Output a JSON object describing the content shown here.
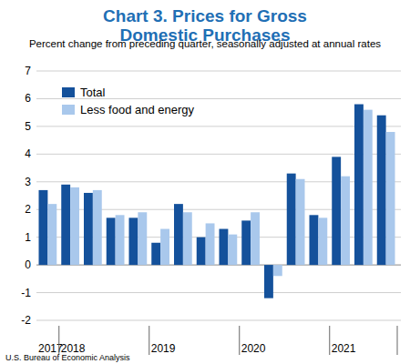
{
  "chart_data": {
    "type": "bar",
    "title": "Chart 3. Prices for Gross Domestic Purchases",
    "subtitle": "Percent change from preceding quarter, seasonally adjusted at annual rates",
    "source": "U.S. Bureau of Economic Analysis",
    "categories": [
      "2017",
      "2018",
      null,
      null,
      null,
      "2019",
      null,
      null,
      null,
      "2020",
      null,
      null,
      null,
      "2021",
      null,
      null
    ],
    "series": [
      {
        "name": "Total",
        "color": "#14519b",
        "values": [
          2.7,
          2.9,
          2.6,
          1.7,
          1.7,
          0.8,
          2.2,
          1.0,
          1.3,
          1.6,
          -1.2,
          3.3,
          1.8,
          3.9,
          5.8,
          5.4
        ]
      },
      {
        "name": "Less food and energy",
        "color": "#a9c8ec",
        "values": [
          2.2,
          2.8,
          2.7,
          1.8,
          1.9,
          1.3,
          1.9,
          1.5,
          1.1,
          1.9,
          -0.4,
          3.1,
          1.7,
          3.2,
          5.6,
          4.8
        ]
      }
    ],
    "ylim": [
      -2,
      7
    ],
    "yticks": [
      -2,
      -1,
      0,
      1,
      2,
      3,
      4,
      5,
      6,
      7
    ],
    "grid": true,
    "legend": "top-left"
  }
}
